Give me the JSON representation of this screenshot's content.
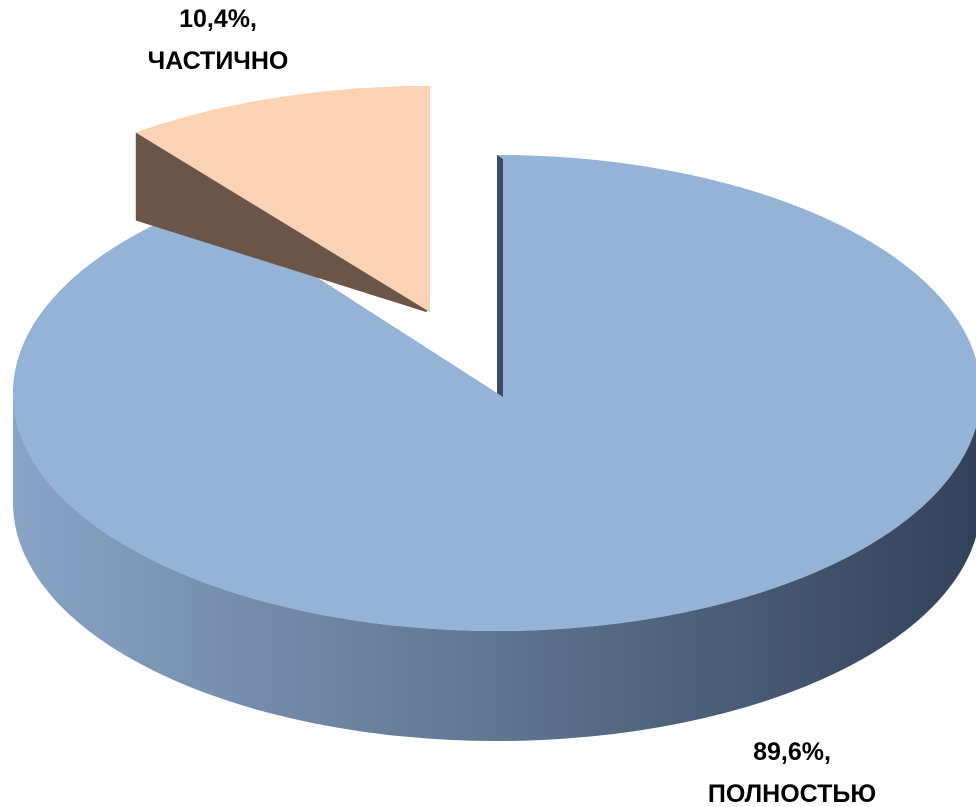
{
  "chart_data": {
    "type": "pie",
    "style": "3d-exploded",
    "title": "",
    "slices": [
      {
        "category": "ПОЛНОСТЬЮ",
        "value": 89.6,
        "value_text": "89,6%,",
        "color": "#95B3D7",
        "side_color": "#3A4A60"
      },
      {
        "category": "ЧАСТИЧНО",
        "value": 10.4,
        "value_text": "10,4%,",
        "color": "#FAD2B4",
        "side_color": "#6A5548"
      }
    ],
    "legend": "none"
  }
}
